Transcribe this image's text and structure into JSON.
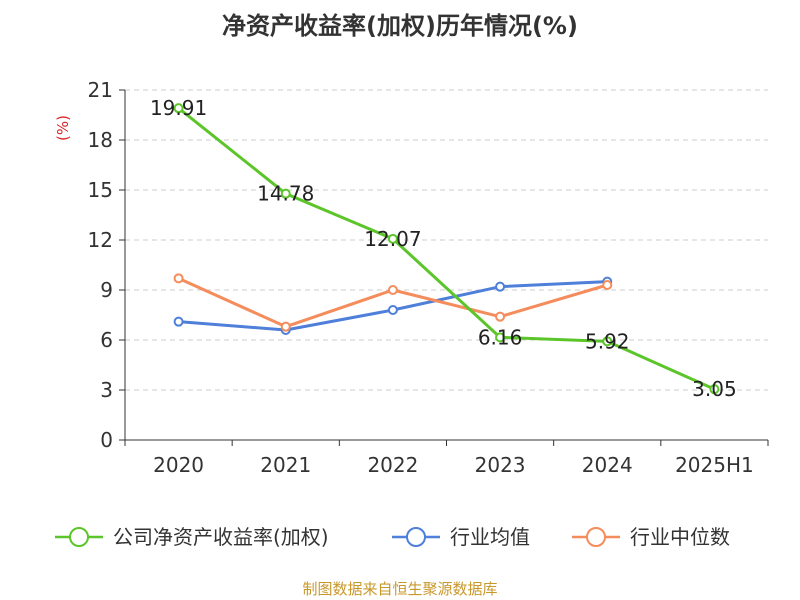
{
  "chart_data": {
    "type": "line",
    "title": "净资产收益率(加权)历年情况(%)",
    "ylabel": "(%)",
    "ylim": [
      0,
      21
    ],
    "yticks": [
      0,
      3,
      6,
      9,
      12,
      15,
      18,
      21
    ],
    "categories": [
      "2020",
      "2021",
      "2022",
      "2023",
      "2024",
      "2025H1"
    ],
    "grid": true,
    "legend_position": "bottom",
    "series": [
      {
        "name": "公司净资产收益率(加权)",
        "color": "#5cc52a",
        "values": [
          19.91,
          14.78,
          12.07,
          6.16,
          5.92,
          3.05
        ],
        "data_labels": [
          "19.91",
          "14.78",
          "12.07",
          "6.16",
          "5.92",
          "3.05"
        ]
      },
      {
        "name": "行业均值",
        "color": "#4e7fd9",
        "values": [
          7.1,
          6.6,
          7.8,
          9.2,
          9.5,
          null
        ]
      },
      {
        "name": "行业中位数",
        "color": "#f48c5c",
        "values": [
          9.7,
          6.8,
          9.0,
          7.4,
          9.3,
          null
        ]
      }
    ],
    "source": "制图数据来自恒生聚源数据库"
  }
}
